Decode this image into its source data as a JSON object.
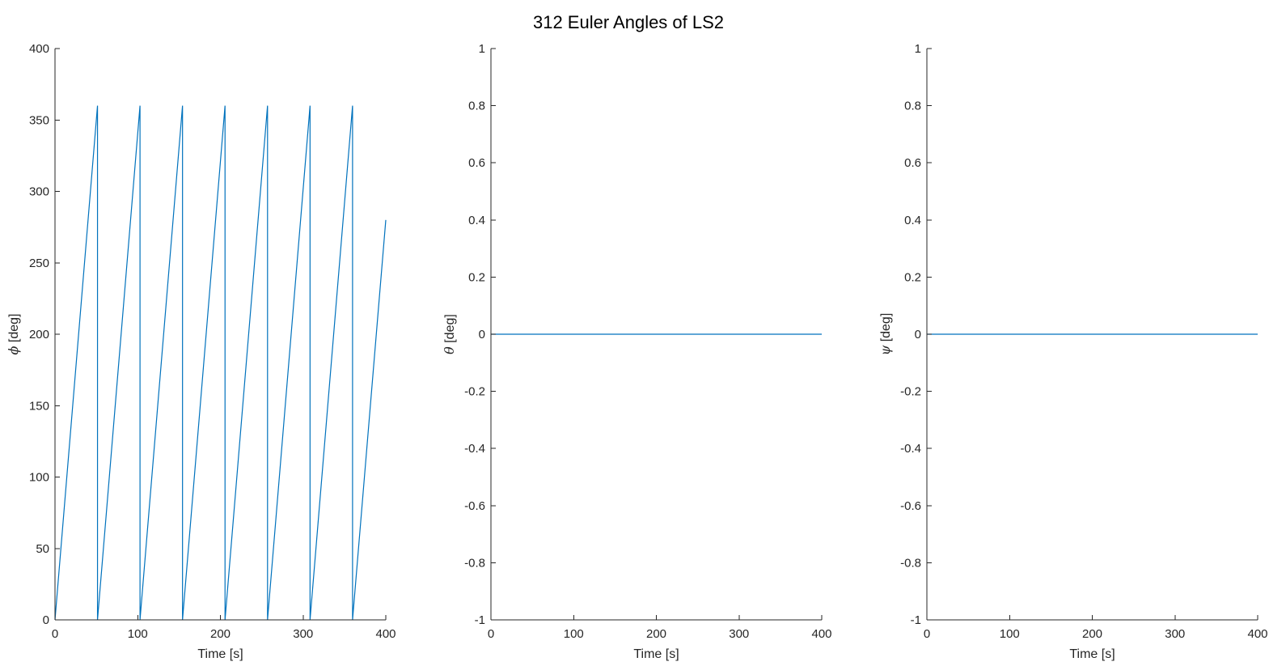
{
  "figure": {
    "title": "312 Euler Angles of LS2"
  },
  "colors": {
    "series": "#0072BD",
    "axis": "#262626",
    "background": "#ffffff"
  },
  "chart_data": [
    {
      "type": "line",
      "xlabel": "Time [s]",
      "ylabel_symbol": "ϕ",
      "ylabel_unit": " [deg]",
      "xlim": [
        0,
        400
      ],
      "ylim": [
        0,
        400
      ],
      "xticks": [
        "0",
        "100",
        "200",
        "300",
        "400"
      ],
      "xtick_values": [
        0,
        100,
        200,
        300,
        400
      ],
      "yticks": [
        "0",
        "50",
        "100",
        "150",
        "200",
        "250",
        "300",
        "350",
        "400"
      ],
      "ytick_values": [
        0,
        50,
        100,
        150,
        200,
        250,
        300,
        350,
        400
      ],
      "grid": false,
      "series": [
        {
          "x": [
            0,
            51.4,
            51.4,
            102.8,
            102.8,
            154.2,
            154.2,
            205.6,
            205.6,
            257,
            257,
            308.4,
            308.4,
            359.8,
            359.8,
            400
          ],
          "y": [
            0,
            360,
            0,
            360,
            0,
            360,
            0,
            360,
            0,
            360,
            0,
            360,
            0,
            360,
            0,
            280
          ]
        }
      ]
    },
    {
      "type": "line",
      "xlabel": "Time [s]",
      "ylabel_symbol": "θ",
      "ylabel_unit": " [deg]",
      "xlim": [
        0,
        400
      ],
      "ylim": [
        -1,
        1
      ],
      "xticks": [
        "0",
        "100",
        "200",
        "300",
        "400"
      ],
      "xtick_values": [
        0,
        100,
        200,
        300,
        400
      ],
      "yticks": [
        "-1",
        "-0.8",
        "-0.6",
        "-0.4",
        "-0.2",
        "0",
        "0.2",
        "0.4",
        "0.6",
        "0.8",
        "1"
      ],
      "ytick_values": [
        -1,
        -0.8,
        -0.6,
        -0.4,
        -0.2,
        0,
        0.2,
        0.4,
        0.6,
        0.8,
        1
      ],
      "grid": false,
      "series": [
        {
          "x": [
            0,
            400
          ],
          "y": [
            0,
            0
          ]
        }
      ]
    },
    {
      "type": "line",
      "xlabel": "Time [s]",
      "ylabel_symbol": "ψ",
      "ylabel_unit": " [deg]",
      "xlim": [
        0,
        400
      ],
      "ylim": [
        -1,
        1
      ],
      "xticks": [
        "0",
        "100",
        "200",
        "300",
        "400"
      ],
      "xtick_values": [
        0,
        100,
        200,
        300,
        400
      ],
      "yticks": [
        "-1",
        "-0.8",
        "-0.6",
        "-0.4",
        "-0.2",
        "0",
        "0.2",
        "0.4",
        "0.6",
        "0.8",
        "1"
      ],
      "ytick_values": [
        -1,
        -0.8,
        -0.6,
        -0.4,
        -0.2,
        0,
        0.2,
        0.4,
        0.6,
        0.8,
        1
      ],
      "grid": false,
      "series": [
        {
          "x": [
            0,
            400
          ],
          "y": [
            0,
            0
          ]
        }
      ]
    }
  ]
}
